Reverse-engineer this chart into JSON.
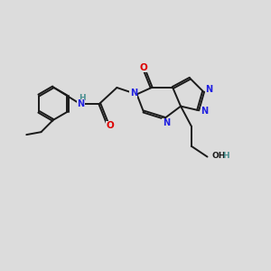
{
  "bg_color": "#dcdcdc",
  "bond_color": "#1a1a1a",
  "N_color": "#2020e0",
  "O_color": "#dd0000",
  "teal_color": "#4a9090",
  "lw": 1.4,
  "dbo": 0.035,
  "xlim": [
    0,
    10
  ],
  "ylim": [
    0,
    10
  ]
}
